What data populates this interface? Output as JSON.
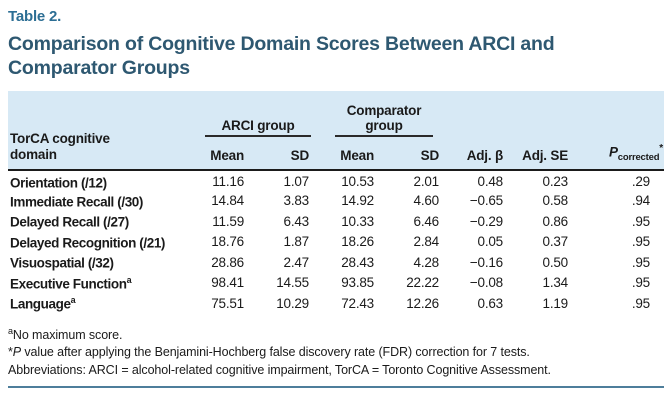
{
  "table_label": "Table 2.",
  "title": {
    "line1": "Comparison of Cognitive Domain Scores Between ARCI and",
    "line2": "Comparator Groups"
  },
  "table": {
    "row_header": {
      "line1": "TorCA cognitive",
      "line2": "domain"
    },
    "groups": {
      "arci": "ARCI group",
      "comparator_line1": "Comparator",
      "comparator_line2": "group"
    },
    "sub_headers": [
      "Mean",
      "SD",
      "Mean",
      "SD"
    ],
    "col_adj_beta": "Adj. β",
    "col_adj_se": "Adj. SE",
    "p_header": {
      "main": "P",
      "sub": "corrected",
      "sup": "*"
    },
    "rows": [
      {
        "label": "Orientation (/12)",
        "sup": "",
        "values": [
          "11.16",
          "1.07",
          "10.53",
          "2.01",
          "0.48",
          "0.23",
          ".29"
        ]
      },
      {
        "label": "Immediate Recall (/30)",
        "sup": "",
        "values": [
          "14.84",
          "3.83",
          "14.92",
          "4.60",
          "−0.65",
          "0.58",
          ".94"
        ]
      },
      {
        "label": "Delayed Recall (/27)",
        "sup": "",
        "values": [
          "11.59",
          "6.43",
          "10.33",
          "6.46",
          "−0.29",
          "0.86",
          ".95"
        ]
      },
      {
        "label": "Delayed Recognition (/21)",
        "sup": "",
        "values": [
          "18.76",
          "1.87",
          "18.26",
          "2.84",
          "0.05",
          "0.37",
          ".95"
        ]
      },
      {
        "label": "Visuospatial (/32)",
        "sup": "",
        "values": [
          "28.86",
          "2.47",
          "28.43",
          "4.28",
          "−0.16",
          "0.50",
          ".95"
        ]
      },
      {
        "label": "Executive Function",
        "sup": "a",
        "values": [
          "98.41",
          "14.55",
          "93.85",
          "22.22",
          "−0.08",
          "1.34",
          ".95"
        ]
      },
      {
        "label": "Language",
        "sup": "a",
        "values": [
          "75.51",
          "10.29",
          "72.43",
          "12.26",
          "0.63",
          "1.19",
          ".95"
        ]
      }
    ]
  },
  "footnotes": {
    "a": {
      "sup": "a",
      "text": "No maximum score."
    },
    "star": {
      "prefix": "*",
      "italic": "P",
      "text": " value after applying the Benjamini-Hochberg false discovery rate (FDR) correction for 7 tests."
    },
    "abbrev": {
      "text": "Abbreviations: ARCI = alcohol-related cognitive impairment, TorCA = Toronto Cognitive Assessment."
    }
  },
  "colors": {
    "accent_label": "#2c6e94",
    "title": "#2e5871",
    "header_bg": "#d7e9f5",
    "rule_dark": "#1b1b1b",
    "rule_bottom": "#4e7e9b"
  }
}
